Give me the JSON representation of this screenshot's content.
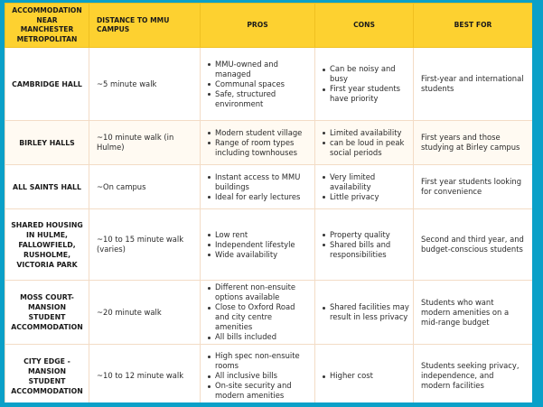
{
  "colors": {
    "frame": "#0aa0c8",
    "header_bg": "#fdd130",
    "border": "#f3dcc6",
    "alt_row_bg": "#fffaf2"
  },
  "table": {
    "headers": [
      "ACCOMMODATION NEAR MANCHESTER METROPOLITAN",
      "DISTANCE TO MMU CAMPUS",
      "PROS",
      "CONS",
      "BEST FOR"
    ],
    "rows": [
      {
        "name": "CAMBRIDGE HALL",
        "distance": "~5 minute walk",
        "pros": [
          "MMU-owned and managed",
          "Communal spaces",
          "Safe, structured environment"
        ],
        "cons": [
          "Can be noisy and busy",
          "First year students have priority"
        ],
        "best_for": "First-year and international students"
      },
      {
        "name": "BIRLEY HALLS",
        "distance": "~10 minute walk (in Hulme)",
        "pros": [
          "Modern student village",
          "Range of room types including townhouses"
        ],
        "cons": [
          "Limited availability",
          "can be loud in peak social periods"
        ],
        "best_for": "First years and those studying at Birley campus"
      },
      {
        "name": "ALL SAINTS HALL",
        "distance": "~On campus",
        "pros": [
          "Instant access to MMU buildings",
          "Ideal for early lectures"
        ],
        "cons": [
          "Very limited availability",
          "Little privacy"
        ],
        "best_for": "First year students looking for convenience"
      },
      {
        "name": "SHARED HOUSING IN HULME, FALLOWFIELD, RUSHOLME, VICTORIA PARK",
        "distance": "~10 to 15 minute walk (varies)",
        "pros": [
          "Low rent",
          "Independent lifestyle",
          "Wide availability"
        ],
        "cons": [
          "Property quality",
          "Shared bills and responsibilities"
        ],
        "best_for": "Second and third year, and budget-conscious students"
      },
      {
        "name": "MOSS COURT- MANSION STUDENT ACCOMMODATION",
        "distance": "~20 minute walk",
        "pros": [
          "Different non-ensuite options available",
          "Close to Oxford Road and city centre amenities",
          "All bills included"
        ],
        "cons": [
          "Shared facilities may result in less privacy"
        ],
        "best_for": "Students who want modern amenities on a mid-range budget"
      },
      {
        "name": "CITY EDGE - MANSION STUDENT ACCOMMODATION",
        "distance": "~10 to 12 minute walk",
        "pros": [
          "High spec non-ensuite rooms",
          "All inclusive bills",
          "On-site security and modern amenities"
        ],
        "cons": [
          "Higher cost"
        ],
        "best_for": "Students seeking privacy, independence, and modern facilities"
      }
    ]
  }
}
